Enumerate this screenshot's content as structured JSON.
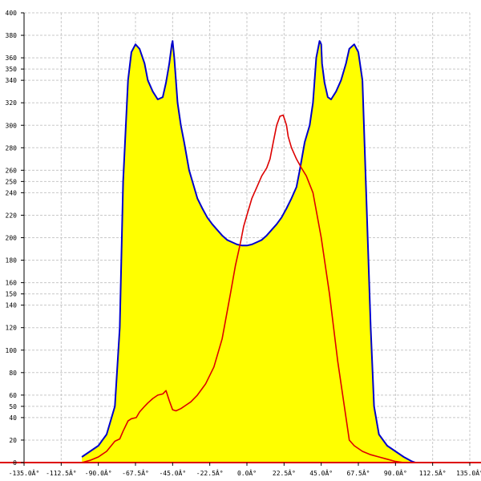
{
  "chart_data": {
    "type": "area",
    "title": "",
    "xlabel": "",
    "ylabel": "",
    "xlim": [
      -135,
      135
    ],
    "ylim": [
      0,
      400
    ],
    "grid": true,
    "x_ticks": [
      -135,
      -112.5,
      -90,
      -67.5,
      -45,
      -22.5,
      0,
      22.5,
      45,
      67.5,
      90,
      112.5,
      135
    ],
    "x_tick_labels": [
      "-135.0Â°",
      "-112.5Â°",
      "-90.0Â°",
      "-67.5Â°",
      "-45.0Â°",
      "-22.5Â°",
      "0.0Â°",
      "22.5Â°",
      "45.0Â°",
      "67.5Â°",
      "90.0Â°",
      "112.5Â°",
      "135.0Â°"
    ],
    "y_ticks": [
      0,
      20,
      40,
      50,
      60,
      80,
      100,
      120,
      140,
      150,
      160,
      180,
      200,
      220,
      240,
      250,
      260,
      280,
      300,
      320,
      340,
      350,
      360,
      380,
      400
    ],
    "y_tick_labels": [
      "0",
      "20",
      "40",
      "50",
      "60",
      "80",
      "100",
      "120",
      "140",
      "150",
      "160",
      "180",
      "200",
      "220",
      "240",
      "250",
      "260",
      "280",
      "300",
      "320",
      "340",
      "350",
      "360",
      "380",
      "400"
    ],
    "colors": {
      "fill": "#ffff00",
      "outline": "#0000cc",
      "overlay": "#dd0000",
      "grid": "#c8c8c8",
      "axis": "#000000",
      "baseline": "#dd0000"
    },
    "series": [
      {
        "style": "filled-area",
        "x": [
          -100,
          -95,
          -90,
          -85,
          -80,
          -77,
          -75,
          -72,
          -70,
          -67.5,
          -65,
          -62,
          -60,
          -57,
          -54,
          -51,
          -49,
          -47,
          -45.5,
          -45,
          -44,
          -42,
          -40,
          -38,
          -35,
          -32,
          -30,
          -27,
          -24,
          -21,
          -18,
          -15,
          -12,
          -9,
          -6,
          -3,
          0,
          3,
          6,
          9,
          12,
          15,
          18,
          21,
          24,
          27,
          30,
          32,
          35,
          38,
          40,
          42,
          44,
          45,
          45.5,
          47,
          49,
          51,
          54,
          57,
          60,
          62,
          65,
          67.5,
          70,
          72,
          75,
          77,
          80,
          85,
          90,
          95,
          100,
          102
        ],
        "y": [
          5,
          10,
          15,
          25,
          50,
          120,
          250,
          340,
          365,
          372,
          368,
          355,
          340,
          330,
          323,
          325,
          338,
          355,
          372,
          375,
          360,
          320,
          300,
          285,
          260,
          245,
          235,
          226,
          218,
          212,
          207,
          202,
          198,
          196,
          194,
          193,
          193,
          194,
          196,
          198,
          202,
          207,
          212,
          218,
          226,
          235,
          245,
          260,
          285,
          300,
          320,
          360,
          375,
          372,
          355,
          338,
          325,
          323,
          330,
          340,
          355,
          368,
          372,
          365,
          340,
          250,
          120,
          50,
          25,
          15,
          10,
          5,
          1,
          0
        ]
      },
      {
        "style": "line",
        "x": [
          -100,
          -95,
          -90,
          -85,
          -80,
          -77,
          -75,
          -72,
          -70,
          -67,
          -65,
          -62,
          -60,
          -57,
          -54,
          -51,
          -49,
          -47,
          -45,
          -43,
          -40,
          -37,
          -34,
          -30,
          -25,
          -20,
          -15,
          -10,
          -7,
          -4,
          -2,
          0,
          3,
          6,
          9,
          12,
          14,
          16,
          18,
          20,
          22,
          24,
          25,
          27,
          30,
          33,
          36,
          40,
          45,
          50,
          55,
          60,
          62,
          65,
          70,
          75,
          80,
          85,
          90,
          95,
          100
        ],
        "y": [
          0,
          2,
          5,
          10,
          19,
          21,
          28,
          37,
          39,
          40,
          45,
          50,
          53,
          57,
          60,
          61,
          64,
          55,
          47,
          46,
          48,
          51,
          54,
          60,
          70,
          85,
          110,
          150,
          175,
          195,
          210,
          220,
          235,
          245,
          255,
          262,
          270,
          285,
          300,
          308,
          309,
          300,
          290,
          280,
          270,
          262,
          255,
          240,
          200,
          150,
          90,
          40,
          20,
          15,
          10,
          7,
          5,
          3,
          1,
          0,
          0
        ]
      }
    ]
  }
}
